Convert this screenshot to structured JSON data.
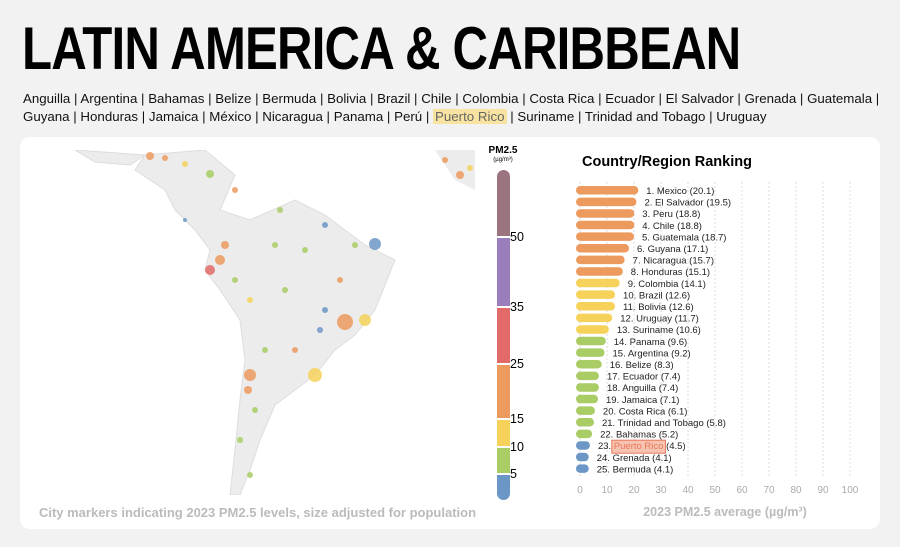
{
  "title": "LATIN AMERICA & CARIBBEAN",
  "countries": [
    "Anguilla",
    "Argentina",
    "Bahamas",
    "Belize",
    "Bermuda",
    "Bolivia",
    "Brazil",
    "Chile",
    "Colombia",
    "Costa Rica",
    "Ecuador",
    "El Salvador",
    "Grenada",
    "Guatemala",
    "Guyana",
    "Honduras",
    "Jamaica",
    "México",
    "Nicaragua",
    "Panama",
    "Perú",
    "Puerto Rico",
    "Suriname",
    "Trinidad and Tobago",
    "Uruguay"
  ],
  "highlighted_country": "Puerto Rico",
  "map_caption": "City markers indicating 2023 PM2.5 levels, size adjusted for population",
  "legend": {
    "title": "PM2.5",
    "unit": "(µg/m³)",
    "ticks": [
      "50",
      "35",
      "25",
      "15",
      "10",
      "5"
    ],
    "colors": [
      "#9b7480",
      "#9a7dbb",
      "#e26a69",
      "#ec9a5e",
      "#f6d25a",
      "#a9cc64",
      "#6c96c6"
    ]
  },
  "chart_data": {
    "type": "bar",
    "title": "Country/Region Ranking",
    "xlabel": "2023 PM2.5 average (µg/m³)",
    "xlim": [
      0,
      100
    ],
    "xticks": [
      "0",
      "10",
      "20",
      "30",
      "40",
      "50",
      "60",
      "70",
      "80",
      "90",
      "100"
    ],
    "categories": [
      "Mexico",
      "El Salvador",
      "Peru",
      "Chile",
      "Guatemala",
      "Guyana",
      "Nicaragua",
      "Honduras",
      "Colombia",
      "Brazil",
      "Bolivia",
      "Uruguay",
      "Suriname",
      "Panama",
      "Argentina",
      "Belize",
      "Ecuador",
      "Anguilla",
      "Jamaica",
      "Costa Rica",
      "Trinidad and Tobago",
      "Bahamas",
      "Puerto Rico",
      "Grenada",
      "Bermuda"
    ],
    "values": [
      20.1,
      19.5,
      18.8,
      18.8,
      18.7,
      17.1,
      15.7,
      15.1,
      14.1,
      12.6,
      12.6,
      11.7,
      10.6,
      9.6,
      9.2,
      8.3,
      7.4,
      7.4,
      7.1,
      6.1,
      5.8,
      5.2,
      4.5,
      4.1,
      4.1
    ]
  }
}
